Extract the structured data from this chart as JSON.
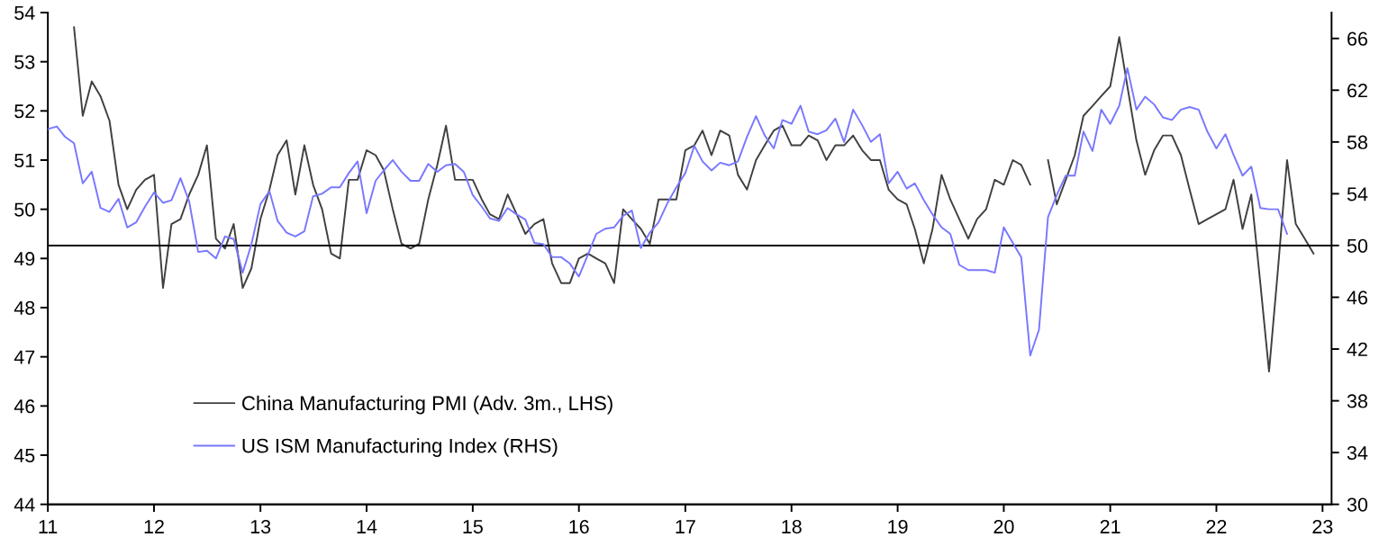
{
  "chart_data": {
    "type": "line",
    "x": [
      "2011-01",
      "2011-02",
      "2011-03",
      "2011-04",
      "2011-05",
      "2011-06",
      "2011-07",
      "2011-08",
      "2011-09",
      "2011-10",
      "2011-11",
      "2011-12",
      "2012-01",
      "2012-02",
      "2012-03",
      "2012-04",
      "2012-05",
      "2012-06",
      "2012-07",
      "2012-08",
      "2012-09",
      "2012-10",
      "2012-11",
      "2012-12",
      "2013-01",
      "2013-02",
      "2013-03",
      "2013-04",
      "2013-05",
      "2013-06",
      "2013-07",
      "2013-08",
      "2013-09",
      "2013-10",
      "2013-11",
      "2013-12",
      "2014-01",
      "2014-02",
      "2014-03",
      "2014-04",
      "2014-05",
      "2014-06",
      "2014-07",
      "2014-08",
      "2014-09",
      "2014-10",
      "2014-11",
      "2014-12",
      "2015-01",
      "2015-02",
      "2015-03",
      "2015-04",
      "2015-05",
      "2015-06",
      "2015-07",
      "2015-08",
      "2015-09",
      "2015-10",
      "2015-11",
      "2015-12",
      "2016-01",
      "2016-02",
      "2016-03",
      "2016-04",
      "2016-05",
      "2016-06",
      "2016-07",
      "2016-08",
      "2016-09",
      "2016-10",
      "2016-11",
      "2016-12",
      "2017-01",
      "2017-02",
      "2017-03",
      "2017-04",
      "2017-05",
      "2017-06",
      "2017-07",
      "2017-08",
      "2017-09",
      "2017-10",
      "2017-11",
      "2017-12",
      "2018-01",
      "2018-02",
      "2018-03",
      "2018-04",
      "2018-05",
      "2018-06",
      "2018-07",
      "2018-08",
      "2018-09",
      "2018-10",
      "2018-11",
      "2018-12",
      "2019-01",
      "2019-02",
      "2019-03",
      "2019-04",
      "2019-05",
      "2019-06",
      "2019-07",
      "2019-08",
      "2019-09",
      "2019-10",
      "2019-11",
      "2019-12",
      "2020-01",
      "2020-02",
      "2020-03",
      "2020-04",
      "2020-05",
      "2020-06",
      "2020-07",
      "2020-08",
      "2020-09",
      "2020-10",
      "2020-11",
      "2020-12",
      "2021-01",
      "2021-02",
      "2021-03",
      "2021-04",
      "2021-05",
      "2021-06",
      "2021-07",
      "2021-08",
      "2021-09",
      "2021-10",
      "2021-11",
      "2021-12",
      "2022-01",
      "2022-02",
      "2022-03",
      "2022-04",
      "2022-05",
      "2022-06",
      "2022-07",
      "2022-08",
      "2022-09",
      "2022-10",
      "2022-11",
      "2022-12"
    ],
    "series": [
      {
        "name": "China Manufacturing PMI (Adv. 3m., LHS)",
        "color": "#404040",
        "axis": "y",
        "values": [
          null,
          null,
          null,
          53.7,
          51.9,
          52.6,
          52.3,
          51.8,
          50.5,
          50.0,
          50.4,
          50.6,
          50.7,
          48.4,
          49.7,
          49.8,
          50.3,
          50.7,
          51.3,
          49.4,
          49.2,
          49.7,
          48.4,
          48.8,
          49.8,
          50.4,
          51.1,
          51.4,
          50.3,
          51.3,
          50.5,
          50.0,
          49.1,
          49.0,
          50.6,
          50.6,
          51.2,
          51.1,
          50.8,
          50.0,
          49.3,
          49.2,
          49.3,
          50.2,
          50.9,
          51.7,
          50.6,
          50.6,
          50.6,
          50.2,
          49.9,
          49.8,
          50.3,
          49.9,
          49.5,
          49.7,
          49.8,
          48.9,
          48.5,
          48.5,
          49.0,
          49.1,
          49.0,
          48.9,
          48.5,
          50.0,
          49.8,
          49.6,
          49.3,
          50.2,
          50.2,
          50.2,
          51.2,
          51.3,
          51.6,
          51.1,
          51.6,
          51.5,
          50.7,
          50.4,
          51.0,
          51.3,
          51.6,
          51.7,
          51.3,
          51.3,
          51.5,
          51.4,
          51.0,
          51.3,
          51.3,
          51.5,
          51.2,
          51.0,
          51.0,
          50.4,
          50.2,
          50.1,
          49.6,
          48.9,
          49.6,
          50.7,
          50.2,
          49.8,
          49.4,
          49.8,
          50.0,
          50.6,
          50.5,
          51.0,
          50.9,
          50.5,
          null,
          51.0,
          50.1,
          50.6,
          51.1,
          51.9,
          52.1,
          52.3,
          52.5,
          53.5,
          52.5,
          51.4,
          50.7,
          51.2,
          51.5,
          51.5,
          51.1,
          50.4,
          49.7,
          49.8,
          49.9,
          50.0,
          50.6,
          49.6,
          50.3,
          48.5,
          46.7,
          48.8,
          51.0,
          49.7,
          49.4,
          49.1
        ]
      },
      {
        "name": "US ISM Manufacturing Index (RHS)",
        "color": "#7878ff",
        "axis": "y2",
        "values": [
          59.0,
          59.2,
          58.4,
          57.9,
          54.8,
          55.7,
          52.9,
          52.6,
          53.6,
          51.4,
          51.8,
          53.0,
          54.1,
          53.3,
          53.5,
          55.2,
          53.4,
          49.5,
          49.6,
          49.0,
          50.7,
          50.5,
          47.9,
          50.1,
          53.2,
          54.2,
          51.9,
          51.0,
          50.7,
          51.1,
          53.8,
          54.0,
          54.5,
          54.5,
          55.6,
          56.5,
          52.5,
          55.0,
          55.8,
          56.6,
          55.7,
          55.0,
          55.0,
          56.3,
          55.7,
          56.2,
          56.3,
          55.7,
          53.9,
          53.0,
          52.1,
          51.9,
          52.9,
          52.4,
          52.0,
          50.2,
          50.1,
          49.1,
          49.1,
          48.6,
          47.6,
          49.3,
          50.9,
          51.3,
          51.4,
          52.3,
          52.7,
          49.8,
          51.0,
          51.8,
          53.3,
          54.5,
          55.6,
          57.7,
          56.5,
          55.8,
          56.4,
          56.2,
          56.5,
          58.4,
          60.0,
          58.5,
          57.5,
          59.7,
          59.4,
          60.8,
          58.8,
          58.6,
          58.9,
          59.8,
          58.0,
          60.5,
          59.3,
          58.0,
          58.6,
          54.8,
          55.7,
          54.4,
          54.8,
          53.5,
          52.4,
          51.4,
          50.9,
          48.5,
          48.1,
          48.1,
          48.1,
          47.9,
          51.4,
          50.2,
          49.1,
          41.5,
          43.5,
          52.2,
          53.9,
          55.4,
          55.4,
          58.8,
          57.3,
          60.5,
          59.4,
          60.8,
          63.7,
          60.5,
          61.5,
          60.9,
          59.9,
          59.7,
          60.5,
          60.7,
          60.5,
          58.8,
          57.5,
          58.6,
          57.0,
          55.4,
          56.1,
          52.9,
          52.8,
          52.8,
          50.9,
          null,
          null,
          null
        ]
      }
    ],
    "xlim": [
      "2011-01",
      "2023-02"
    ],
    "xticks": [
      {
        "value": "2011",
        "label": "11"
      },
      {
        "value": "2012",
        "label": "12"
      },
      {
        "value": "2013",
        "label": "13"
      },
      {
        "value": "2014",
        "label": "14"
      },
      {
        "value": "2015",
        "label": "15"
      },
      {
        "value": "2016",
        "label": "16"
      },
      {
        "value": "2017",
        "label": "17"
      },
      {
        "value": "2018",
        "label": "18"
      },
      {
        "value": "2019",
        "label": "19"
      },
      {
        "value": "2020",
        "label": "20"
      },
      {
        "value": "2021",
        "label": "21"
      },
      {
        "value": "2022",
        "label": "22"
      },
      {
        "value": "2023",
        "label": "23"
      }
    ],
    "ylim": [
      44,
      54
    ],
    "yticks": [
      44,
      45,
      46,
      47,
      48,
      49,
      50,
      51,
      52,
      53,
      54
    ],
    "y2lim": [
      30,
      68
    ],
    "y2ticks": [
      30,
      34,
      38,
      42,
      46,
      50,
      54,
      58,
      62,
      66
    ],
    "ref_lines": [
      {
        "axis": "y2",
        "value": 50,
        "color": "#000000"
      }
    ],
    "legend": "bottom left"
  }
}
